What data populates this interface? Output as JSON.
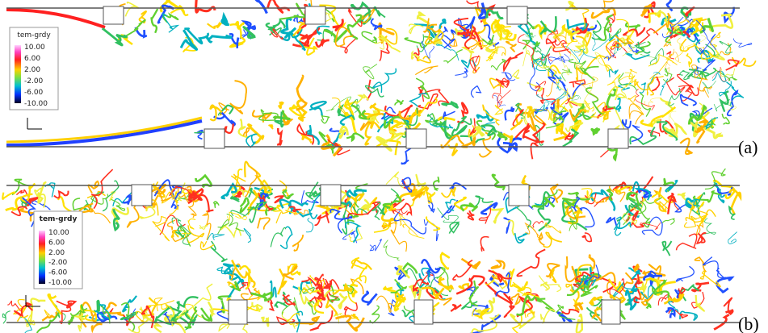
{
  "panels": [
    {
      "label": "(a)",
      "legend": {
        "title": "tem-grdy",
        "ticks": [
          "10.00",
          "6.00",
          "2.00",
          "-2.00",
          "-6.00",
          "-10.00"
        ]
      }
    },
    {
      "label": "(b)",
      "legend": {
        "title": "tem-grdy",
        "ticks": [
          "10.00",
          "6.00",
          "2.00",
          "-2.00",
          "-6.00",
          "-10.00"
        ]
      }
    }
  ]
}
